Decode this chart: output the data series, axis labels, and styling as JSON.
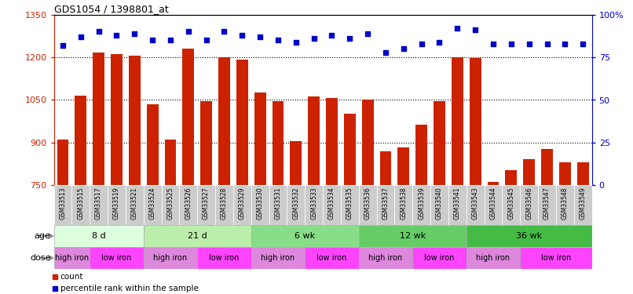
{
  "title": "GDS1054 / 1398801_at",
  "samples": [
    "GSM33513",
    "GSM33515",
    "GSM33517",
    "GSM33519",
    "GSM33521",
    "GSM33524",
    "GSM33525",
    "GSM33526",
    "GSM33527",
    "GSM33528",
    "GSM33529",
    "GSM33530",
    "GSM33531",
    "GSM33532",
    "GSM33533",
    "GSM33534",
    "GSM33535",
    "GSM33536",
    "GSM33537",
    "GSM33538",
    "GSM33539",
    "GSM33540",
    "GSM33541",
    "GSM33543",
    "GSM33544",
    "GSM33545",
    "GSM33546",
    "GSM33547",
    "GSM33548",
    "GSM33549"
  ],
  "counts": [
    910,
    1065,
    1218,
    1212,
    1206,
    1035,
    910,
    1232,
    1045,
    1200,
    1193,
    1075,
    1047,
    905,
    1062,
    1057,
    1002,
    1052,
    870,
    882,
    962,
    1047,
    1200,
    1197,
    762,
    802,
    842,
    877,
    832,
    832
  ],
  "percentile_ranks": [
    82,
    87,
    90,
    88,
    89,
    85,
    85,
    90,
    85,
    90,
    88,
    87,
    85,
    84,
    86,
    88,
    86,
    89,
    78,
    80,
    83,
    84,
    92,
    91,
    83,
    83,
    83,
    83,
    83,
    83
  ],
  "ylim_left": [
    750,
    1350
  ],
  "ylim_right": [
    0,
    100
  ],
  "yticks_left": [
    750,
    900,
    1050,
    1200,
    1350
  ],
  "yticks_right": [
    0,
    25,
    50,
    75,
    100
  ],
  "ytick_labels_right": [
    "0",
    "25",
    "50",
    "75",
    "100%"
  ],
  "bar_color": "#cc2200",
  "dot_color": "#0000cc",
  "age_groups": [
    {
      "label": "8 d",
      "start": 0,
      "end": 5,
      "color": "#ddffdd"
    },
    {
      "label": "21 d",
      "start": 5,
      "end": 11,
      "color": "#bbeeaa"
    },
    {
      "label": "6 wk",
      "start": 11,
      "end": 17,
      "color": "#88dd88"
    },
    {
      "label": "12 wk",
      "start": 17,
      "end": 23,
      "color": "#66cc66"
    },
    {
      "label": "36 wk",
      "start": 23,
      "end": 30,
      "color": "#44bb44"
    }
  ],
  "dose_groups": [
    {
      "label": "high iron",
      "start": 0,
      "end": 2,
      "color": "#dd88dd"
    },
    {
      "label": "low iron",
      "start": 2,
      "end": 5,
      "color": "#ff44ff"
    },
    {
      "label": "high iron",
      "start": 5,
      "end": 8,
      "color": "#dd88dd"
    },
    {
      "label": "low iron",
      "start": 8,
      "end": 11,
      "color": "#ff44ff"
    },
    {
      "label": "high iron",
      "start": 11,
      "end": 14,
      "color": "#dd88dd"
    },
    {
      "label": "low iron",
      "start": 14,
      "end": 17,
      "color": "#ff44ff"
    },
    {
      "label": "high iron",
      "start": 17,
      "end": 20,
      "color": "#dd88dd"
    },
    {
      "label": "low iron",
      "start": 20,
      "end": 23,
      "color": "#ff44ff"
    },
    {
      "label": "high iron",
      "start": 23,
      "end": 26,
      "color": "#dd88dd"
    },
    {
      "label": "low iron",
      "start": 26,
      "end": 30,
      "color": "#ff44ff"
    }
  ],
  "background_color": "#ffffff",
  "left_axis_color": "#cc2200",
  "right_axis_color": "#0000cc",
  "tick_label_bg": "#cccccc",
  "n_samples": 30,
  "bar_width": 0.65
}
